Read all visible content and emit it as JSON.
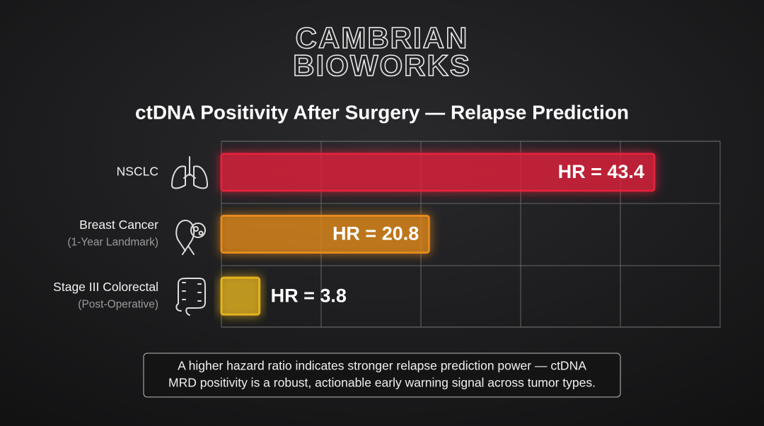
{
  "brand": [
    "CAMBRIAN",
    "BIOWORKS"
  ],
  "chart_data": {
    "type": "bar",
    "orientation": "horizontal",
    "title": "ctDNA Positivity After Surgery — Relapse Prediction",
    "categories": [
      "NSCLC",
      "Breast Cancer",
      "Stage III Colorectal"
    ],
    "category_notes": [
      null,
      "(1-Year Landmark)",
      "(Post-Operative)"
    ],
    "values": [
      43.4,
      20.8,
      3.8
    ],
    "value_labels": [
      "HR = 43.4",
      "HR = 20.8",
      "HR = 3.8"
    ],
    "colors": [
      "#e3203c",
      "#e48a1c",
      "#e6b41e"
    ],
    "xlim": [
      0,
      50
    ],
    "xticks": [
      0,
      10,
      20,
      30,
      40,
      50
    ],
    "tick_labels": false,
    "grid": true
  },
  "note": [
    "A higher hazard ratio indicates stronger relapse prediction power — ctDNA",
    "MRD positivity is a robust, actionable early warning signal across tumor types."
  ]
}
